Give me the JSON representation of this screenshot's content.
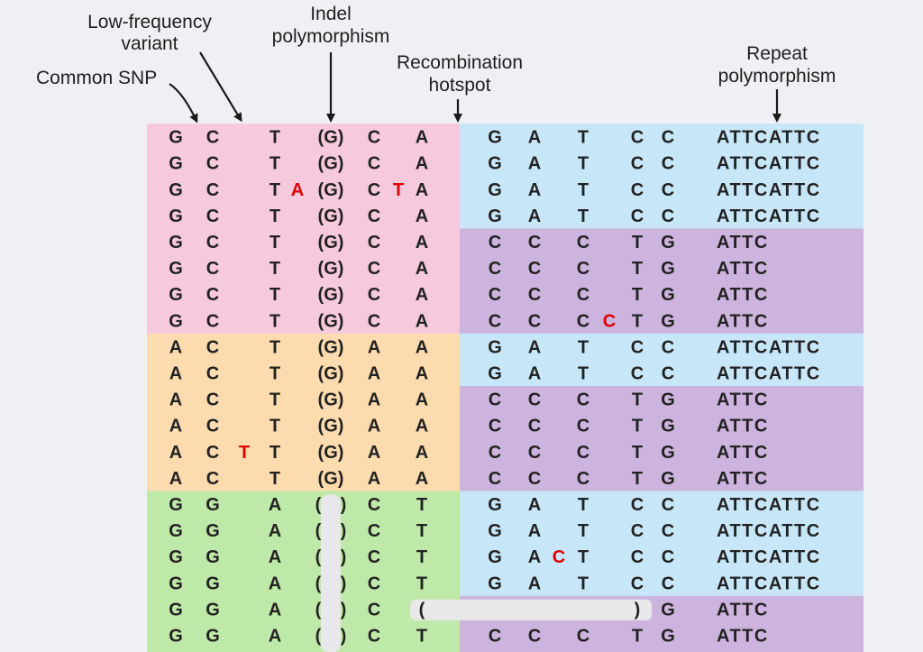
{
  "labels": {
    "common_snp": "Common SNP",
    "low_freq": [
      "Low-frequency",
      "variant"
    ],
    "indel": [
      "Indel",
      "polymorphism"
    ],
    "recomb": [
      "Recombination",
      "hotspot"
    ],
    "repeat": [
      "Repeat",
      "polymorphism"
    ]
  },
  "colors": {
    "pink": "#f6c9dc",
    "orange": "#fcdcae",
    "green": "#bfe9a8",
    "blue": "#c7e7f8",
    "purple": "#cdb4de",
    "red_base": "#e00000",
    "gap": "#e8e8ea"
  },
  "rows": [
    {
      "left": [
        "G",
        "C",
        "",
        "T",
        "(G)",
        "C",
        "A"
      ],
      "left_red": [],
      "right": [
        "G",
        "A",
        "",
        "T",
        "C",
        "C"
      ],
      "right_red": [],
      "repeat": "ATTCATTC",
      "lcolor": "pink",
      "rcolor": "blue"
    },
    {
      "left": [
        "G",
        "C",
        "",
        "T",
        "(G)",
        "C",
        "A"
      ],
      "left_red": [],
      "right": [
        "G",
        "A",
        "",
        "T",
        "C",
        "C"
      ],
      "right_red": [],
      "repeat": "ATTCATTC",
      "lcolor": "pink",
      "rcolor": "blue"
    },
    {
      "left": [
        "G",
        "C",
        "",
        "T",
        "(G)",
        "C",
        "A"
      ],
      "left_red": [],
      "right": [
        "G",
        "A",
        "",
        "T",
        "C",
        "C"
      ],
      "right_red": [],
      "repeat": "ATTCATTC",
      "lcolor": "pink",
      "rcolor": "blue",
      "extra": [
        {
          "text": "A",
          "after": 3
        },
        {
          "text": "T",
          "after": 5
        }
      ]
    },
    {
      "left": [
        "G",
        "C",
        "",
        "T",
        "(G)",
        "C",
        "A"
      ],
      "left_red": [],
      "right": [
        "G",
        "A",
        "",
        "T",
        "C",
        "C"
      ],
      "right_red": [],
      "repeat": "ATTCATTC",
      "lcolor": "pink",
      "rcolor": "blue"
    },
    {
      "left": [
        "G",
        "C",
        "",
        "T",
        "(G)",
        "C",
        "A"
      ],
      "left_red": [],
      "right": [
        "C",
        "C",
        "",
        "C",
        "T",
        "G"
      ],
      "right_red": [],
      "repeat": "ATTC",
      "lcolor": "pink",
      "rcolor": "purple"
    },
    {
      "left": [
        "G",
        "C",
        "",
        "T",
        "(G)",
        "C",
        "A"
      ],
      "left_red": [],
      "right": [
        "C",
        "C",
        "",
        "C",
        "T",
        "G"
      ],
      "right_red": [],
      "repeat": "ATTC",
      "lcolor": "pink",
      "rcolor": "purple"
    },
    {
      "left": [
        "G",
        "C",
        "",
        "T",
        "(G)",
        "C",
        "A"
      ],
      "left_red": [],
      "right": [
        "C",
        "C",
        "",
        "C",
        "T",
        "G"
      ],
      "right_red": [],
      "repeat": "ATTC",
      "lcolor": "pink",
      "rcolor": "purple"
    },
    {
      "left": [
        "G",
        "C",
        "",
        "T",
        "(G)",
        "C",
        "A"
      ],
      "left_red": [],
      "right": [
        "C",
        "C",
        "",
        "C",
        "T",
        "G"
      ],
      "right_red": [],
      "repeat": "ATTC",
      "lcolor": "pink",
      "rcolor": "purple",
      "rextra": {
        "text": "C",
        "slot": 2
      }
    },
    {
      "left": [
        "A",
        "C",
        "",
        "T",
        "(G)",
        "A",
        "A"
      ],
      "left_red": [],
      "right": [
        "G",
        "A",
        "",
        "T",
        "C",
        "C"
      ],
      "right_red": [],
      "repeat": "ATTCATTC",
      "lcolor": "orange",
      "rcolor": "blue"
    },
    {
      "left": [
        "A",
        "C",
        "",
        "T",
        "(G)",
        "A",
        "A"
      ],
      "left_red": [],
      "right": [
        "G",
        "A",
        "",
        "T",
        "C",
        "C"
      ],
      "right_red": [],
      "repeat": "ATTCATTC",
      "lcolor": "orange",
      "rcolor": "blue"
    },
    {
      "left": [
        "A",
        "C",
        "",
        "T",
        "(G)",
        "A",
        "A"
      ],
      "left_red": [],
      "right": [
        "C",
        "C",
        "",
        "C",
        "T",
        "G"
      ],
      "right_red": [],
      "repeat": "ATTC",
      "lcolor": "orange",
      "rcolor": "purple"
    },
    {
      "left": [
        "A",
        "C",
        "",
        "T",
        "(G)",
        "A",
        "A"
      ],
      "left_red": [],
      "right": [
        "C",
        "C",
        "",
        "C",
        "T",
        "G"
      ],
      "right_red": [],
      "repeat": "ATTC",
      "lcolor": "orange",
      "rcolor": "purple"
    },
    {
      "left": [
        "A",
        "C",
        "T",
        "T",
        "(G)",
        "A",
        "A"
      ],
      "left_red": [
        2
      ],
      "right": [
        "C",
        "C",
        "",
        "C",
        "T",
        "G"
      ],
      "right_red": [],
      "repeat": "ATTC",
      "lcolor": "orange",
      "rcolor": "purple"
    },
    {
      "left": [
        "A",
        "C",
        "",
        "T",
        "(G)",
        "A",
        "A"
      ],
      "left_red": [],
      "right": [
        "C",
        "C",
        "",
        "C",
        "T",
        "G"
      ],
      "right_red": [],
      "repeat": "ATTC",
      "lcolor": "orange",
      "rcolor": "purple"
    },
    {
      "left": [
        "G",
        "G",
        "",
        "A",
        "( )",
        "C",
        "T"
      ],
      "left_red": [],
      "right": [
        "G",
        "A",
        "",
        "T",
        "C",
        "C"
      ],
      "right_red": [],
      "repeat": "ATTCATTC",
      "lcolor": "green",
      "rcolor": "blue"
    },
    {
      "left": [
        "G",
        "G",
        "",
        "A",
        "( )",
        "C",
        "T"
      ],
      "left_red": [],
      "right": [
        "G",
        "A",
        "",
        "T",
        "C",
        "C"
      ],
      "right_red": [],
      "repeat": "ATTCATTC",
      "lcolor": "green",
      "rcolor": "blue"
    },
    {
      "left": [
        "G",
        "G",
        "",
        "A",
        "( )",
        "C",
        "T"
      ],
      "left_red": [],
      "right": [
        "G",
        "A",
        "C",
        "T",
        "C",
        "C"
      ],
      "right_red": [
        2
      ],
      "repeat": "ATTCATTC",
      "lcolor": "green",
      "rcolor": "blue"
    },
    {
      "left": [
        "G",
        "G",
        "",
        "A",
        "( )",
        "C",
        "T"
      ],
      "left_red": [],
      "right": [
        "G",
        "A",
        "",
        "T",
        "C",
        "C"
      ],
      "right_red": [],
      "repeat": "ATTCATTC",
      "lcolor": "green",
      "rcolor": "blue"
    },
    {
      "left": [
        "G",
        "G",
        "",
        "A",
        "( )",
        "C",
        "("
      ],
      "left_red": [],
      "right": [
        "",
        "",
        "",
        "",
        ")",
        "G"
      ],
      "right_red": [],
      "repeat": "ATTC",
      "lcolor": "green",
      "rcolor": "purple",
      "deletion": true
    },
    {
      "left": [
        "G",
        "G",
        "",
        "A",
        "( )",
        "C",
        "T"
      ],
      "left_red": [],
      "right": [
        "C",
        "C",
        "",
        "C",
        "T",
        "G"
      ],
      "right_red": [],
      "repeat": "ATTC",
      "lcolor": "green",
      "rcolor": "purple"
    }
  ]
}
